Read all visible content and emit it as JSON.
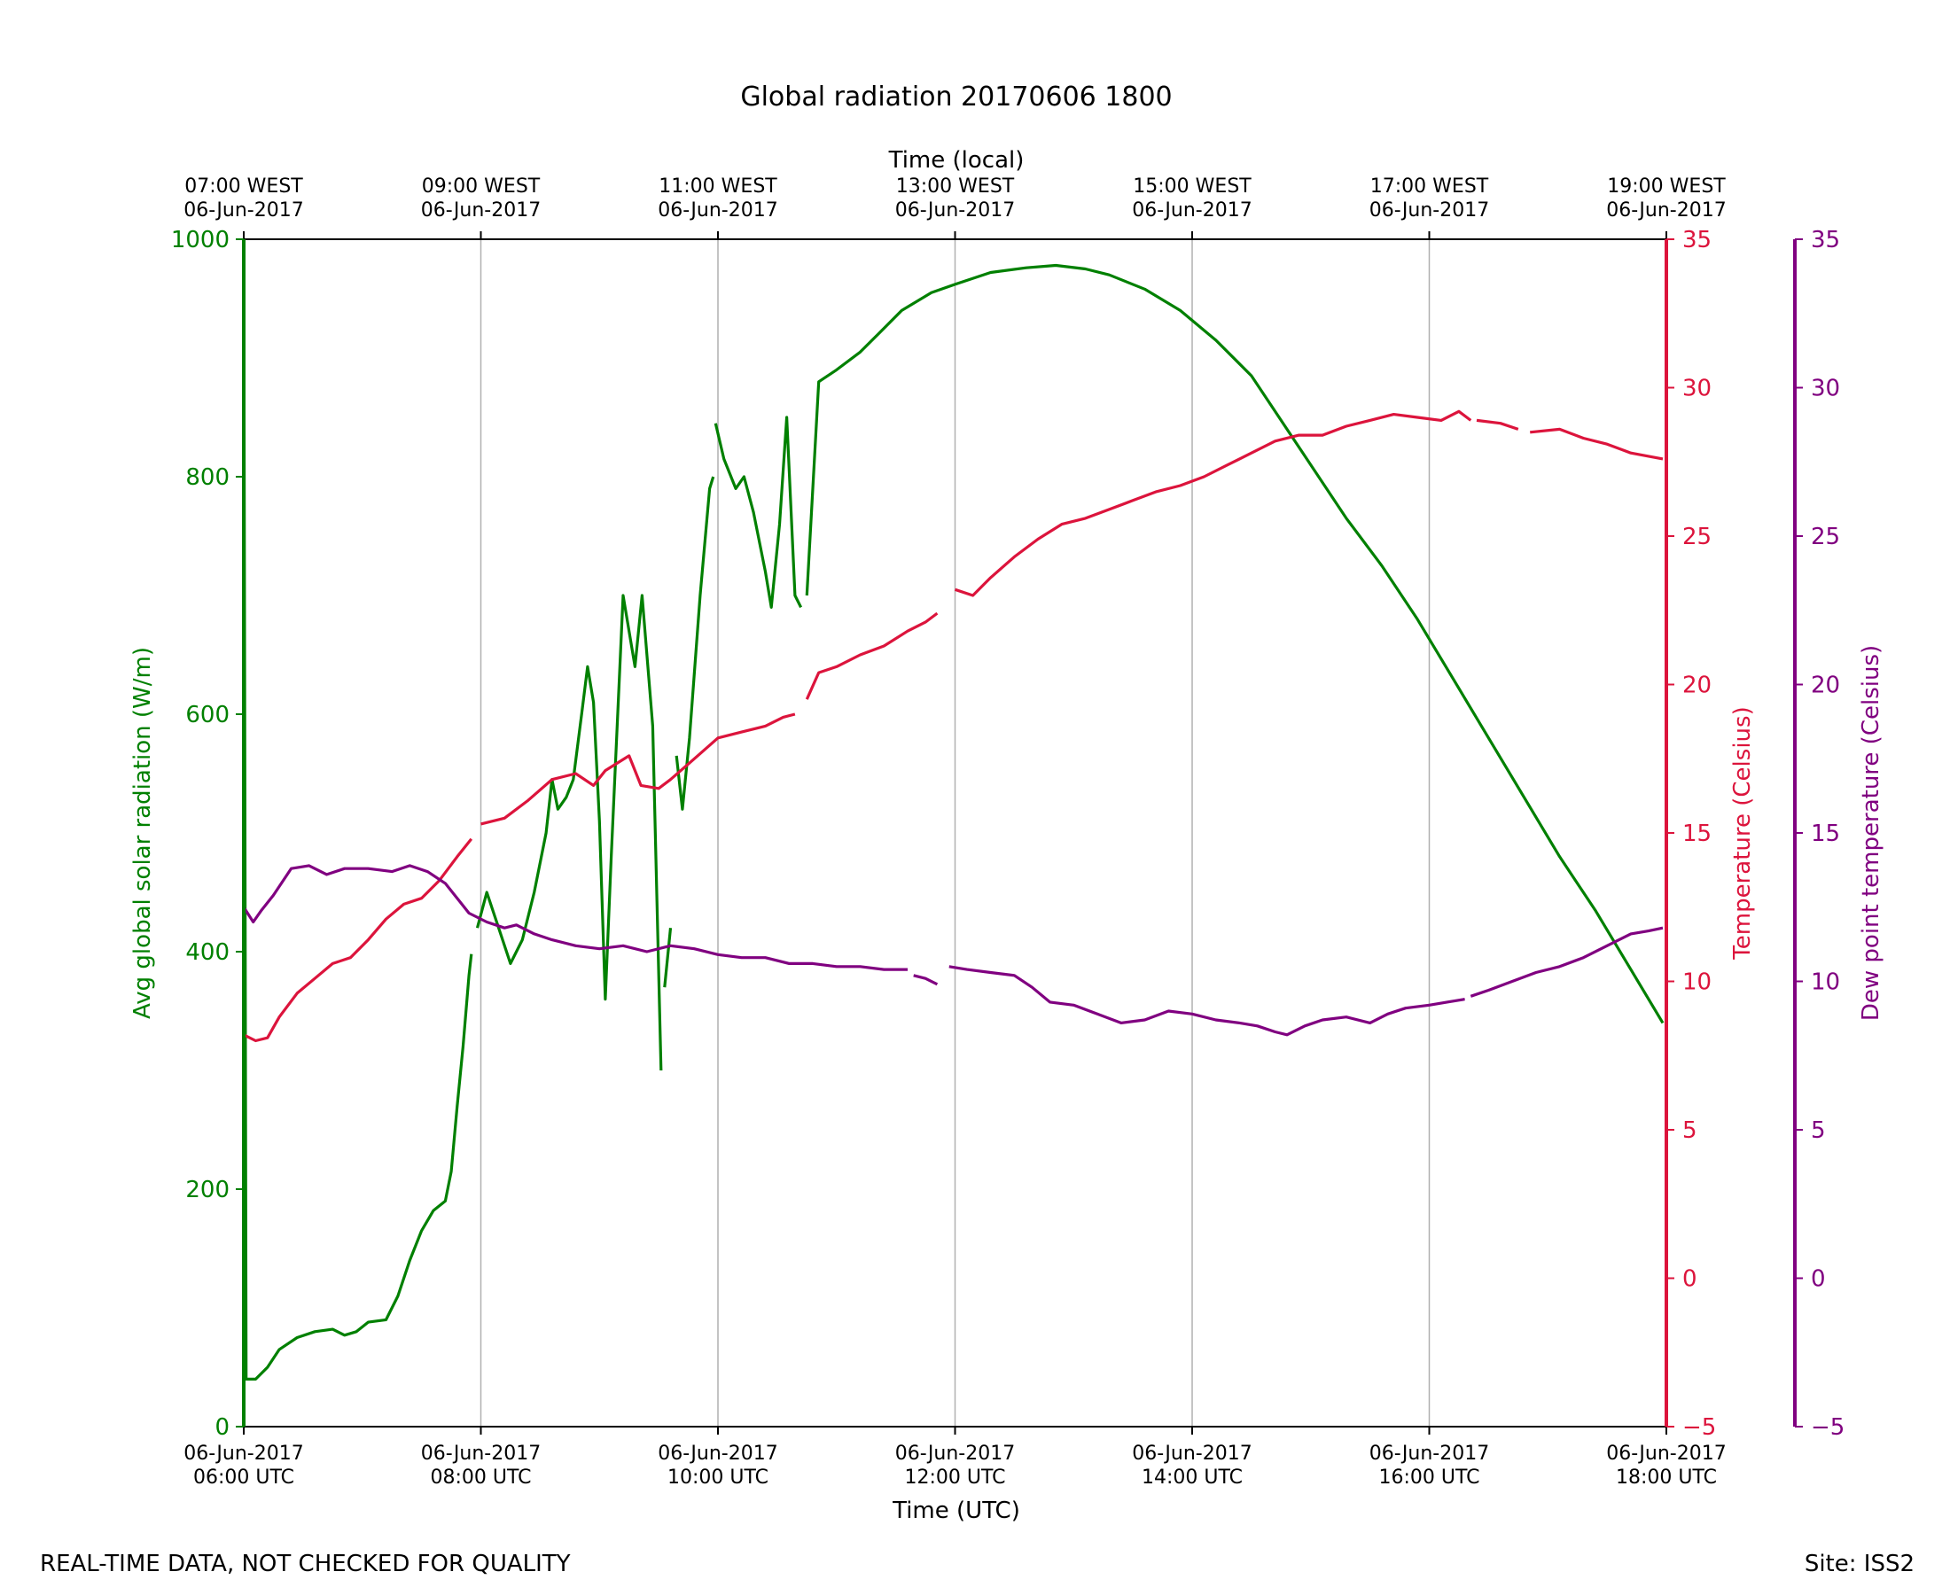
{
  "chart_data": {
    "type": "line",
    "title": "Global radiation 20170606 1800",
    "xlabel_bottom": "Time (UTC)",
    "xlabel_top": "Time (local)",
    "x_unit": "hours UTC",
    "xlim": [
      6,
      18
    ],
    "x_ticks_bottom": [
      {
        "value": 6,
        "date": "06-Jun-2017",
        "time": "06:00 UTC"
      },
      {
        "value": 8,
        "date": "06-Jun-2017",
        "time": "08:00 UTC"
      },
      {
        "value": 10,
        "date": "06-Jun-2017",
        "time": "10:00 UTC"
      },
      {
        "value": 12,
        "date": "06-Jun-2017",
        "time": "12:00 UTC"
      },
      {
        "value": 14,
        "date": "06-Jun-2017",
        "time": "14:00 UTC"
      },
      {
        "value": 16,
        "date": "06-Jun-2017",
        "time": "16:00 UTC"
      },
      {
        "value": 18,
        "date": "06-Jun-2017",
        "time": "18:00 UTC"
      }
    ],
    "x_ticks_top": [
      {
        "value": 6,
        "time": "07:00 WEST",
        "date": "06-Jun-2017"
      },
      {
        "value": 8,
        "time": "09:00 WEST",
        "date": "06-Jun-2017"
      },
      {
        "value": 10,
        "time": "11:00 WEST",
        "date": "06-Jun-2017"
      },
      {
        "value": 12,
        "time": "13:00 WEST",
        "date": "06-Jun-2017"
      },
      {
        "value": 14,
        "time": "15:00 WEST",
        "date": "06-Jun-2017"
      },
      {
        "value": 16,
        "time": "17:00 WEST",
        "date": "06-Jun-2017"
      },
      {
        "value": 18,
        "time": "19:00 WEST",
        "date": "06-Jun-2017"
      }
    ],
    "axes": {
      "radiation": {
        "label": "Avg global solar radiation (W/m)",
        "ylim": [
          0,
          1000
        ],
        "ticks": [
          "0",
          "200",
          "400",
          "600",
          "800",
          "1000"
        ],
        "color": "#008000"
      },
      "temperature": {
        "label": "Temperature (Celsius)",
        "ylim": [
          -5,
          35
        ],
        "ticks": [
          "−5",
          "0",
          "5",
          "10",
          "15",
          "20",
          "25",
          "30",
          "35"
        ],
        "color": "#dc143c"
      },
      "dewpoint": {
        "label": "Dew point temperature (Celsius)",
        "ylim": [
          -5,
          35
        ],
        "ticks": [
          "−5",
          "0",
          "5",
          "10",
          "15",
          "20",
          "25",
          "30",
          "35"
        ],
        "color": "#800080"
      }
    },
    "grid": "vertical",
    "series": [
      {
        "name": "Avg global solar radiation",
        "axis": "radiation",
        "color": "#008000",
        "segments": [
          [
            [
              6.0,
              1000
            ],
            [
              6.02,
              40
            ],
            [
              6.1,
              40
            ],
            [
              6.2,
              50
            ],
            [
              6.3,
              65
            ],
            [
              6.45,
              75
            ],
            [
              6.6,
              80
            ],
            [
              6.75,
              82
            ],
            [
              6.85,
              77
            ],
            [
              6.95,
              80
            ],
            [
              7.05,
              88
            ],
            [
              7.2,
              90
            ],
            [
              7.3,
              110
            ],
            [
              7.4,
              140
            ],
            [
              7.5,
              165
            ],
            [
              7.6,
              182
            ],
            [
              7.7,
              190
            ],
            [
              7.75,
              215
            ],
            [
              7.8,
              270
            ],
            [
              7.85,
              320
            ],
            [
              7.9,
              380
            ],
            [
              7.92,
              398
            ]
          ],
          [
            [
              7.97,
              420
            ],
            [
              8.05,
              450
            ],
            [
              8.15,
              420
            ],
            [
              8.25,
              390
            ],
            [
              8.35,
              410
            ],
            [
              8.45,
              450
            ],
            [
              8.55,
              500
            ],
            [
              8.6,
              545
            ],
            [
              8.65,
              520
            ],
            [
              8.72,
              530
            ],
            [
              8.78,
              545
            ],
            [
              8.85,
              600
            ],
            [
              8.9,
              640
            ],
            [
              8.95,
              610
            ],
            [
              9.0,
              510
            ],
            [
              9.05,
              360
            ],
            [
              9.1,
              480
            ],
            [
              9.2,
              700
            ],
            [
              9.3,
              640
            ],
            [
              9.36,
              700
            ],
            [
              9.45,
              590
            ],
            [
              9.52,
              300
            ]
          ],
          [
            [
              9.55,
              370
            ],
            [
              9.6,
              420
            ]
          ],
          [
            [
              9.65,
              565
            ],
            [
              9.7,
              520
            ],
            [
              9.76,
              580
            ],
            [
              9.85,
              700
            ],
            [
              9.93,
              790
            ],
            [
              9.96,
              800
            ]
          ],
          [
            [
              9.98,
              845
            ],
            [
              10.05,
              815
            ],
            [
              10.15,
              790
            ],
            [
              10.22,
              800
            ],
            [
              10.3,
              770
            ],
            [
              10.4,
              720
            ],
            [
              10.45,
              690
            ],
            [
              10.52,
              760
            ],
            [
              10.58,
              850
            ],
            [
              10.65,
              700
            ],
            [
              10.7,
              690
            ]
          ],
          [
            [
              10.75,
              700
            ],
            [
              10.85,
              880
            ],
            [
              11.0,
              890
            ],
            [
              11.2,
              905
            ],
            [
              11.35,
              920
            ],
            [
              11.55,
              940
            ],
            [
              11.8,
              955
            ],
            [
              12.0,
              962
            ],
            [
              12.3,
              972
            ],
            [
              12.6,
              976
            ],
            [
              12.85,
              978
            ],
            [
              13.1,
              975
            ],
            [
              13.3,
              970
            ],
            [
              13.6,
              958
            ],
            [
              13.9,
              940
            ],
            [
              14.2,
              915
            ],
            [
              14.5,
              885
            ],
            [
              14.8,
              840
            ],
            [
              15.0,
              810
            ],
            [
              15.3,
              765
            ],
            [
              15.6,
              725
            ],
            [
              15.9,
              680
            ],
            [
              16.2,
              630
            ],
            [
              16.5,
              580
            ],
            [
              16.8,
              530
            ],
            [
              17.1,
              480
            ],
            [
              17.4,
              435
            ],
            [
              17.7,
              385
            ],
            [
              17.97,
              340
            ]
          ]
        ]
      },
      {
        "name": "Temperature",
        "axis": "temperature",
        "color": "#dc143c",
        "segments": [
          [
            [
              6.0,
              8.2
            ],
            [
              6.1,
              8.0
            ],
            [
              6.2,
              8.1
            ],
            [
              6.3,
              8.8
            ],
            [
              6.45,
              9.6
            ],
            [
              6.6,
              10.1
            ],
            [
              6.75,
              10.6
            ],
            [
              6.9,
              10.8
            ],
            [
              7.05,
              11.4
            ],
            [
              7.2,
              12.1
            ],
            [
              7.35,
              12.6
            ],
            [
              7.5,
              12.8
            ],
            [
              7.65,
              13.4
            ],
            [
              7.8,
              14.2
            ],
            [
              7.92,
              14.8
            ]
          ],
          [
            [
              8.0,
              15.3
            ],
            [
              8.2,
              15.5
            ],
            [
              8.4,
              16.1
            ],
            [
              8.6,
              16.8
            ],
            [
              8.8,
              17.0
            ],
            [
              8.95,
              16.6
            ],
            [
              9.05,
              17.1
            ],
            [
              9.25,
              17.6
            ],
            [
              9.35,
              16.6
            ],
            [
              9.5,
              16.5
            ],
            [
              9.6,
              16.8
            ],
            [
              9.8,
              17.5
            ],
            [
              10.0,
              18.2
            ],
            [
              10.2,
              18.4
            ],
            [
              10.4,
              18.6
            ],
            [
              10.55,
              18.9
            ],
            [
              10.65,
              19.0
            ]
          ],
          [
            [
              10.75,
              19.5
            ],
            [
              10.85,
              20.4
            ],
            [
              11.0,
              20.6
            ],
            [
              11.2,
              21.0
            ],
            [
              11.4,
              21.3
            ],
            [
              11.6,
              21.8
            ],
            [
              11.75,
              22.1
            ],
            [
              11.85,
              22.4
            ]
          ],
          [
            [
              12.0,
              23.2
            ],
            [
              12.15,
              23.0
            ],
            [
              12.3,
              23.6
            ],
            [
              12.5,
              24.3
            ],
            [
              12.7,
              24.9
            ],
            [
              12.9,
              25.4
            ],
            [
              13.1,
              25.6
            ],
            [
              13.3,
              25.9
            ],
            [
              13.5,
              26.2
            ],
            [
              13.7,
              26.5
            ],
            [
              13.9,
              26.7
            ],
            [
              14.1,
              27.0
            ],
            [
              14.3,
              27.4
            ],
            [
              14.5,
              27.8
            ],
            [
              14.7,
              28.2
            ],
            [
              14.9,
              28.4
            ],
            [
              15.1,
              28.4
            ],
            [
              15.3,
              28.7
            ],
            [
              15.5,
              28.9
            ],
            [
              15.7,
              29.1
            ],
            [
              15.9,
              29.0
            ],
            [
              16.1,
              28.9
            ],
            [
              16.25,
              29.2
            ],
            [
              16.35,
              28.9
            ]
          ],
          [
            [
              16.4,
              28.9
            ],
            [
              16.6,
              28.8
            ],
            [
              16.75,
              28.6
            ]
          ],
          [
            [
              16.85,
              28.5
            ],
            [
              17.1,
              28.6
            ],
            [
              17.3,
              28.3
            ],
            [
              17.5,
              28.1
            ],
            [
              17.7,
              27.8
            ],
            [
              17.97,
              27.6
            ]
          ]
        ]
      },
      {
        "name": "Dew point temperature",
        "axis": "dewpoint",
        "color": "#800080",
        "segments": [
          [
            [
              6.0,
              12.5
            ],
            [
              6.08,
              12.0
            ],
            [
              6.15,
              12.4
            ],
            [
              6.25,
              12.9
            ],
            [
              6.4,
              13.8
            ],
            [
              6.55,
              13.9
            ],
            [
              6.7,
              13.6
            ],
            [
              6.85,
              13.8
            ],
            [
              7.05,
              13.8
            ],
            [
              7.25,
              13.7
            ],
            [
              7.4,
              13.9
            ],
            [
              7.55,
              13.7
            ],
            [
              7.7,
              13.3
            ],
            [
              7.8,
              12.8
            ],
            [
              7.9,
              12.3
            ],
            [
              8.05,
              12.0
            ],
            [
              8.2,
              11.8
            ],
            [
              8.3,
              11.9
            ],
            [
              8.45,
              11.6
            ],
            [
              8.6,
              11.4
            ],
            [
              8.8,
              11.2
            ],
            [
              9.0,
              11.1
            ],
            [
              9.2,
              11.2
            ],
            [
              9.4,
              11.0
            ],
            [
              9.6,
              11.2
            ],
            [
              9.8,
              11.1
            ],
            [
              10.0,
              10.9
            ],
            [
              10.2,
              10.8
            ],
            [
              10.4,
              10.8
            ],
            [
              10.6,
              10.6
            ],
            [
              10.8,
              10.6
            ],
            [
              11.0,
              10.5
            ],
            [
              11.2,
              10.5
            ],
            [
              11.4,
              10.4
            ],
            [
              11.6,
              10.4
            ]
          ],
          [
            [
              11.65,
              10.2
            ],
            [
              11.75,
              10.1
            ],
            [
              11.85,
              9.9
            ]
          ],
          [
            [
              11.95,
              10.5
            ],
            [
              12.1,
              10.4
            ],
            [
              12.3,
              10.3
            ],
            [
              12.5,
              10.2
            ],
            [
              12.65,
              9.8
            ],
            [
              12.8,
              9.3
            ],
            [
              13.0,
              9.2
            ],
            [
              13.2,
              8.9
            ],
            [
              13.4,
              8.6
            ],
            [
              13.6,
              8.7
            ],
            [
              13.8,
              9.0
            ],
            [
              14.0,
              8.9
            ],
            [
              14.2,
              8.7
            ],
            [
              14.4,
              8.6
            ],
            [
              14.55,
              8.5
            ],
            [
              14.7,
              8.3
            ],
            [
              14.8,
              8.2
            ],
            [
              14.95,
              8.5
            ],
            [
              15.1,
              8.7
            ],
            [
              15.3,
              8.8
            ],
            [
              15.5,
              8.6
            ],
            [
              15.65,
              8.9
            ],
            [
              15.8,
              9.1
            ],
            [
              16.0,
              9.2
            ],
            [
              16.15,
              9.3
            ],
            [
              16.3,
              9.4
            ]
          ],
          [
            [
              16.35,
              9.5
            ],
            [
              16.5,
              9.7
            ],
            [
              16.7,
              10.0
            ],
            [
              16.9,
              10.3
            ],
            [
              17.1,
              10.5
            ],
            [
              17.3,
              10.8
            ],
            [
              17.5,
              11.2
            ],
            [
              17.7,
              11.6
            ],
            [
              17.85,
              11.7
            ],
            [
              17.97,
              11.8
            ]
          ]
        ]
      }
    ],
    "legend": "none",
    "footer_left": "REAL-TIME DATA, NOT CHECKED FOR QUALITY",
    "footer_right": "Site: ISS2"
  }
}
